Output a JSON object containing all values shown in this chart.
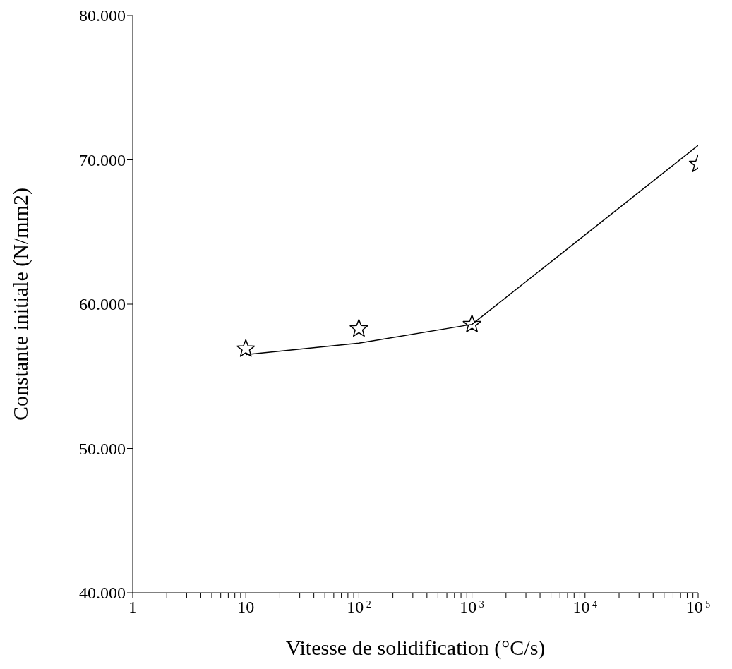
{
  "chart_data": {
    "type": "scatter",
    "xlabel": "Vitesse de solidification (°C/s)",
    "ylabel": "Constante initiale (N/mm2)",
    "log": "x",
    "grid": false,
    "legend": false,
    "xlim": [
      1,
      100000
    ],
    "xticks": [
      {
        "value": 1,
        "label": "1"
      },
      {
        "value": 2,
        "label": null
      },
      {
        "value": 3,
        "label": null
      },
      {
        "value": 4,
        "label": null
      },
      {
        "value": 5,
        "label": null
      },
      {
        "value": 6,
        "label": null
      },
      {
        "value": 7,
        "label": null
      },
      {
        "value": 8,
        "label": null
      },
      {
        "value": 9,
        "label": null
      },
      {
        "value": 10,
        "label": "10"
      },
      {
        "value": 20,
        "label": null
      },
      {
        "value": 30,
        "label": null
      },
      {
        "value": 40,
        "label": null
      },
      {
        "value": 50,
        "label": null
      },
      {
        "value": 60,
        "label": null
      },
      {
        "value": 70,
        "label": null
      },
      {
        "value": 80,
        "label": null
      },
      {
        "value": 90,
        "label": null
      },
      {
        "value": 100,
        "label": "10$^{2}$"
      },
      {
        "value": 200,
        "label": null
      },
      {
        "value": 300,
        "label": null
      },
      {
        "value": 400,
        "label": null
      },
      {
        "value": 500,
        "label": null
      },
      {
        "value": 600,
        "label": null
      },
      {
        "value": 700,
        "label": null
      },
      {
        "value": 800,
        "label": null
      },
      {
        "value": 900,
        "label": null
      },
      {
        "value": 1000,
        "label": "10$^{3}$"
      },
      {
        "value": 2000,
        "label": null
      },
      {
        "value": 3000,
        "label": null
      },
      {
        "value": 4000,
        "label": null
      },
      {
        "value": 5000,
        "label": null
      },
      {
        "value": 6000,
        "label": null
      },
      {
        "value": 7000,
        "label": null
      },
      {
        "value": 8000,
        "label": null
      },
      {
        "value": 9000,
        "label": null
      },
      {
        "value": 10000,
        "label": "10$^{4}$"
      },
      {
        "value": 20000,
        "label": null
      },
      {
        "value": 30000,
        "label": null
      },
      {
        "value": 40000,
        "label": null
      },
      {
        "value": 50000,
        "label": null
      },
      {
        "value": 60000,
        "label": null
      },
      {
        "value": 70000,
        "label": null
      },
      {
        "value": 80000,
        "label": null
      },
      {
        "value": 90000,
        "label": null
      },
      {
        "value": 100000,
        "label": "10$^{5}$"
      }
    ],
    "ylim": [
      40,
      80
    ],
    "yticks": [
      {
        "value": 40,
        "label": "40.000"
      },
      {
        "value": 50,
        "label": "50.000"
      },
      {
        "value": 60,
        "label": "60.000"
      },
      {
        "value": 70,
        "label": "70.000"
      },
      {
        "value": 80,
        "label": "80.000"
      }
    ],
    "series": [
      {
        "color": "#000000",
        "marker": "star",
        "x": [
          10,
          100,
          1000,
          100000
        ],
        "values": [
          56.9,
          58.3,
          58.6,
          69.7
        ]
      },
      {
        "type": "line",
        "color": "#000000",
        "marker": "none",
        "line_style": "solid",
        "x": [
          10,
          100,
          1000,
          100000
        ],
        "values": [
          56.5,
          57.3,
          58.6,
          71.0
        ]
      }
    ]
  }
}
